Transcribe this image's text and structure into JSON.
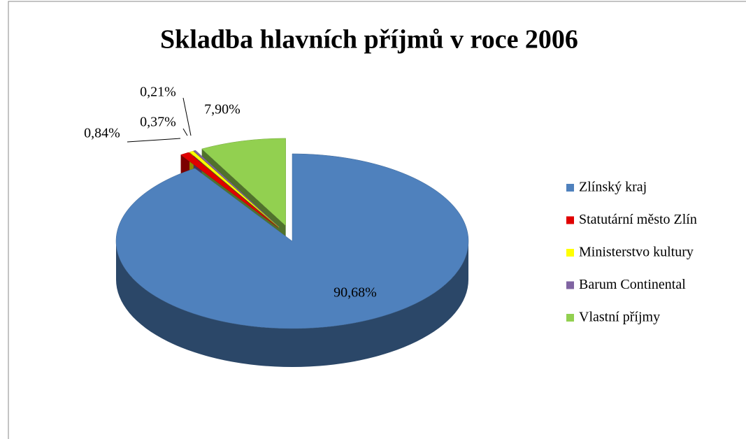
{
  "chart_data": {
    "type": "pie",
    "title": "Skladba hlavních příjmů v roce 2006",
    "categories": [
      "Zlínský kraj",
      "Statutární město Zlín",
      "Ministerstvo kultury",
      "Barum Continental",
      "Vlastní příjmy"
    ],
    "values": [
      90.68,
      0.84,
      0.37,
      0.21,
      7.9
    ],
    "value_labels": [
      "90,68%",
      "0,84%",
      "0,37%",
      "0,21%",
      "7,90%"
    ],
    "colors": [
      "#4f81bd",
      "#e00000",
      "#ffff00",
      "#8064a2",
      "#92d050"
    ],
    "legend": "right"
  }
}
